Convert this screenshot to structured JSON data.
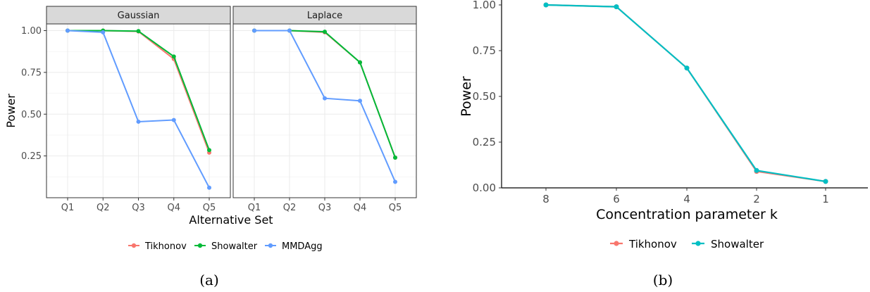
{
  "captions": {
    "a": "(a)",
    "b": "(b)"
  },
  "chart_data": [
    {
      "type": "line",
      "panel": "a",
      "facets": [
        "Gaussian",
        "Laplace"
      ],
      "categories": [
        "Q1",
        "Q2",
        "Q3",
        "Q4",
        "Q5"
      ],
      "xlabel": "Alternative Set",
      "ylabel": "Power",
      "ylim": [
        0.0,
        1.04
      ],
      "yticks": [
        0.25,
        0.5,
        0.75,
        1.0
      ],
      "ytick_labels": [
        "0.25",
        "0.50",
        "0.75",
        "1.00"
      ],
      "grid": true,
      "legend_position": "bottom",
      "series": [
        {
          "name": "Tikhonov",
          "color": "#F8766D",
          "facet_values": {
            "Gaussian": [
              1.0,
              1.0,
              0.995,
              0.83,
              0.27
            ],
            "Laplace": [
              1.0,
              1.0,
              0.99,
              0.81,
              0.24
            ]
          }
        },
        {
          "name": "Showalter",
          "color": "#00BA38",
          "facet_values": {
            "Gaussian": [
              1.0,
              1.0,
              0.997,
              0.845,
              0.285
            ],
            "Laplace": [
              1.0,
              1.0,
              0.993,
              0.81,
              0.24
            ]
          }
        },
        {
          "name": "MMDAgg",
          "color": "#619CFF",
          "facet_values": {
            "Gaussian": [
              1.0,
              0.99,
              0.455,
              0.465,
              0.06
            ],
            "Laplace": [
              1.0,
              1.0,
              0.595,
              0.58,
              0.095
            ]
          }
        }
      ]
    },
    {
      "type": "line",
      "panel": "b",
      "categories": [
        "8",
        "6",
        "4",
        "2",
        "1"
      ],
      "xlabel": "Concentration parameter k",
      "ylabel": "Power",
      "ylim": [
        0.0,
        1.0
      ],
      "yticks": [
        0.0,
        0.25,
        0.5,
        0.75,
        1.0
      ],
      "ytick_labels": [
        "0.00",
        "0.25",
        "0.50",
        "0.75",
        "1.00"
      ],
      "grid": false,
      "legend_position": "bottom",
      "series": [
        {
          "name": "Tikhonov",
          "color": "#F8766D",
          "values": [
            1.0,
            0.99,
            0.655,
            0.09,
            0.035
          ]
        },
        {
          "name": "Showalter",
          "color": "#00BFC4",
          "values": [
            1.0,
            0.99,
            0.655,
            0.095,
            0.035
          ]
        }
      ]
    }
  ]
}
